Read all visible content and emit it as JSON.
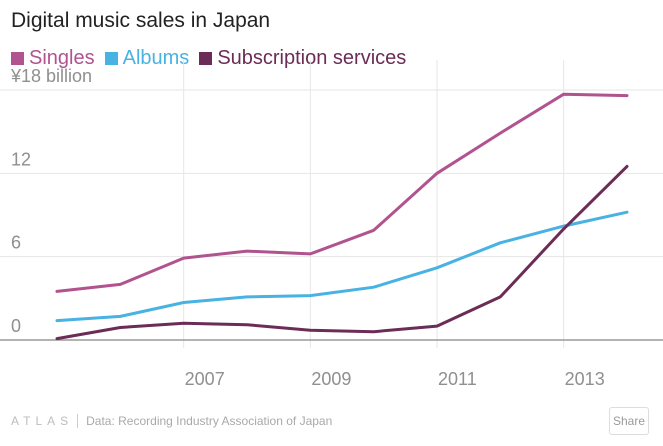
{
  "chart_data": {
    "type": "line",
    "title": "Digital music sales in Japan",
    "x": [
      2005,
      2006,
      2007,
      2008,
      2009,
      2010,
      2011,
      2012,
      2013,
      2014
    ],
    "series": [
      {
        "name": "Singles",
        "color": "#b0538f",
        "values": [
          3.5,
          4.0,
          5.9,
          6.4,
          6.2,
          7.9,
          12.0,
          14.9,
          17.7,
          17.6
        ]
      },
      {
        "name": "Albums",
        "color": "#48b2e2",
        "values": [
          1.4,
          1.7,
          2.7,
          3.1,
          3.2,
          3.8,
          5.2,
          7.0,
          8.2,
          9.2
        ]
      },
      {
        "name": "Subscription services",
        "color": "#6b2c55",
        "values": [
          0.1,
          0.9,
          1.2,
          1.1,
          0.7,
          0.6,
          1.0,
          3.1,
          8.0,
          12.5
        ]
      }
    ],
    "y_ticks": [
      {
        "value": 0,
        "label": "0"
      },
      {
        "value": 6,
        "label": "6"
      },
      {
        "value": 12,
        "label": "12"
      },
      {
        "value": 18,
        "label": "¥18 billion"
      }
    ],
    "x_ticks": [
      {
        "value": 2007,
        "label": "2007"
      },
      {
        "value": 2009,
        "label": "2009"
      },
      {
        "value": 2011,
        "label": "2011"
      },
      {
        "value": 2013,
        "label": "2013"
      }
    ],
    "xlim": [
      2005,
      2014
    ],
    "ylim": [
      0,
      18
    ],
    "xlabel": "",
    "ylabel": "",
    "grid": true
  },
  "footer": {
    "brand": "ATLAS",
    "source": "Data: Recording Industry Association of Japan",
    "share_label": "Share"
  }
}
